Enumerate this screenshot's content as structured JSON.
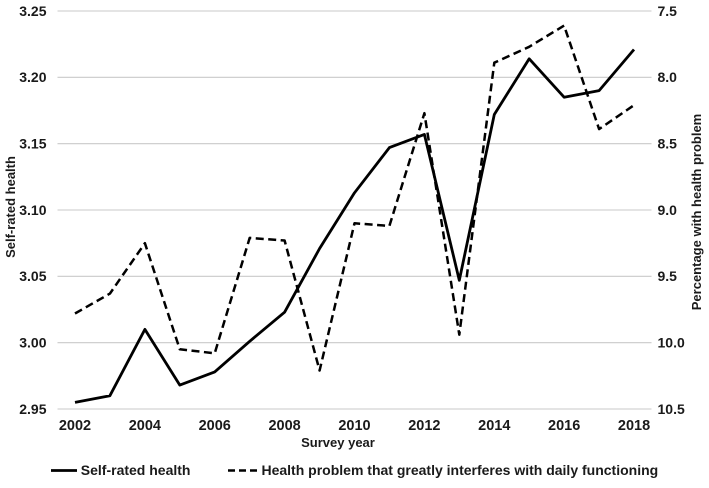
{
  "chart_data": {
    "type": "line",
    "title": "",
    "xlabel": "Survey year",
    "ylabel_left": "Self-rated health",
    "ylabel_right": "Percentage with health problem",
    "x": [
      2002,
      2003,
      2004,
      2005,
      2006,
      2007,
      2008,
      2009,
      2010,
      2011,
      2012,
      2013,
      2014,
      2015,
      2016,
      2017,
      2018
    ],
    "x_tick_labels": [
      "2002",
      "2004",
      "2006",
      "2008",
      "2010",
      "2012",
      "2014",
      "2016",
      "2018"
    ],
    "series": [
      {
        "name": "Self-rated health",
        "axis": "left",
        "style": "solid",
        "color": "#000000",
        "values": [
          2.955,
          2.96,
          3.01,
          2.968,
          2.978,
          3.001,
          3.023,
          3.071,
          3.113,
          3.147,
          3.157,
          3.047,
          3.172,
          3.214,
          3.185,
          3.19,
          3.221
        ]
      },
      {
        "name": "Health problem that greatly interferes with daily functioning",
        "axis": "right",
        "style": "dashed",
        "color": "#000000",
        "values": [
          9.78,
          9.63,
          9.25,
          10.05,
          10.08,
          9.21,
          9.23,
          10.21,
          9.1,
          9.12,
          8.27,
          9.94,
          7.89,
          7.77,
          7.61,
          8.39,
          8.21
        ]
      }
    ],
    "left_axis": {
      "min": 2.95,
      "max": 3.25,
      "reversed": false,
      "tick_labels": [
        "3.25",
        "3.20",
        "3.15",
        "3.10",
        "3.05",
        "3.00",
        "2.95"
      ]
    },
    "right_axis": {
      "min": 7.5,
      "max": 10.5,
      "reversed": true,
      "tick_labels": [
        "7.5",
        "8.0",
        "8.5",
        "9.0",
        "9.5",
        "10.0",
        "10.5"
      ]
    },
    "grid": true,
    "legend_position": "bottom",
    "colors": {
      "line": "#000000",
      "grid": "#c9c9c9",
      "text": "#1a1a1a",
      "background": "#ffffff"
    }
  }
}
